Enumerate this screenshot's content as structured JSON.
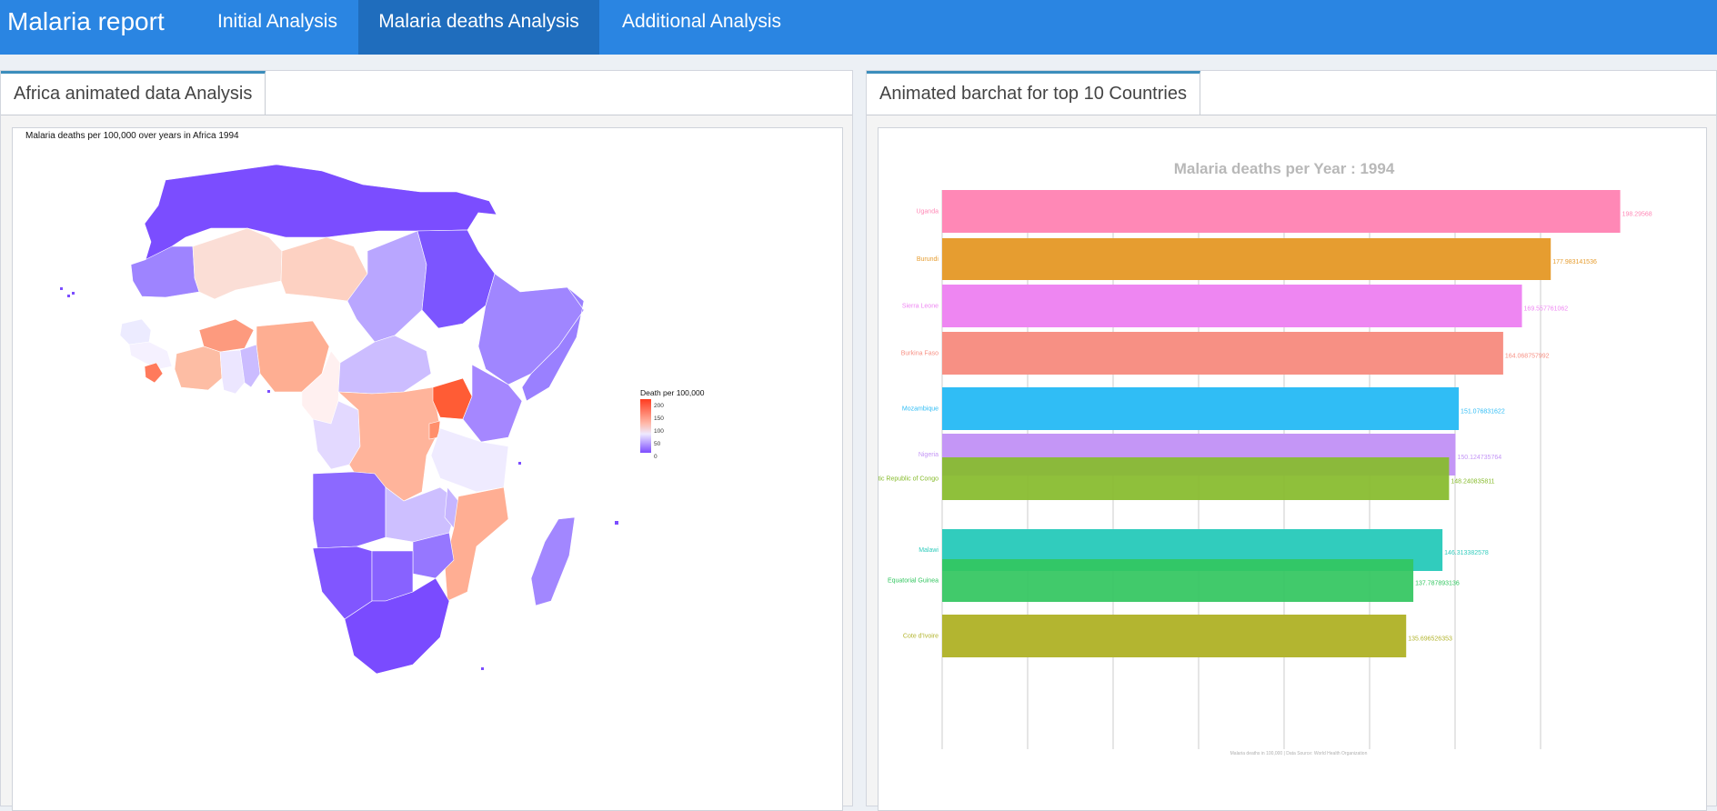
{
  "app": {
    "title": "Malaria report"
  },
  "nav": {
    "tabs": [
      {
        "label": "Initial Analysis",
        "active": false
      },
      {
        "label": "Malaria deaths Analysis",
        "active": true
      },
      {
        "label": "Additional Analysis",
        "active": false
      }
    ]
  },
  "colors": {
    "navbar": "#2a85e2",
    "nav_active": "#1f6dbd",
    "tab_accent": "#3c8dbc"
  },
  "left_panel": {
    "tab_label": "Africa animated data Analysis",
    "map": {
      "title": "Malaria deaths per 100,000 over years in Africa 1994",
      "legend_title": "Death per 100,000",
      "legend_ticks": [
        "200",
        "150",
        "100",
        "50",
        "0"
      ],
      "palette": [
        "#7d4cff",
        "#eee9ff",
        "#ff3b1f"
      ]
    }
  },
  "right_panel": {
    "tab_label": "Animated barchat for top 10 Countries"
  },
  "chart_data": {
    "type": "bar",
    "orientation": "horizontal",
    "title": "Malaria deaths per Year : 1994",
    "caption": "Malaria deaths in 100,000 | Data Source: World Health Organization",
    "xlim": [
      0,
      200
    ],
    "grid": true,
    "legend": "none",
    "bars": [
      {
        "country": "Uganda",
        "value": 198.29568,
        "label": "198.29568",
        "color": "#ff88b6"
      },
      {
        "country": "Burundi",
        "value": 177.983141536,
        "label": "177.983141536",
        "color": "#e69d30"
      },
      {
        "country": "Sierra Leone",
        "value": 169.557761062,
        "label": "169.557761062",
        "color": "#ee86f2"
      },
      {
        "country": "Burkina Faso",
        "value": 164.068757992,
        "label": "164.068757992",
        "color": "#f79084"
      },
      {
        "country": "Mozambique",
        "value": 151.076831622,
        "label": "151.076831622",
        "color": "#30bdf5"
      },
      {
        "country": "Nigeria",
        "value": 150.124735764,
        "label": "150.124735764",
        "color": "#c496f6"
      },
      {
        "country": "ratic Republic of Congo",
        "value": 148.240835811,
        "label": "148.240835811",
        "color": "#86bb2c"
      },
      {
        "country": "Malawi",
        "value": 146.313382578,
        "label": "146.313382578",
        "color": "#31ccbd"
      },
      {
        "country": "Equatorial Guinea",
        "value": 137.787893136,
        "label": "137.787893136",
        "color": "#33c660"
      },
      {
        "country": "Cote d'Ivoire",
        "value": 135.696526353,
        "label": "135.696526353",
        "color": "#b3b530"
      }
    ]
  }
}
